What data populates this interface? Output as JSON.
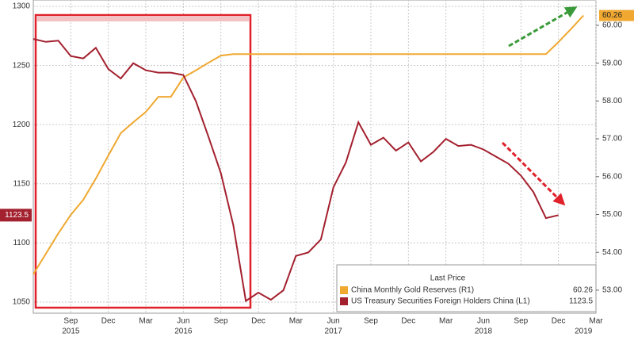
{
  "chart_data": {
    "type": "line",
    "x": [
      "2015-06",
      "2015-07",
      "2015-08",
      "2015-09",
      "2015-10",
      "2015-11",
      "2015-12",
      "2016-01",
      "2016-02",
      "2016-03",
      "2016-04",
      "2016-05",
      "2016-06",
      "2016-07",
      "2016-08",
      "2016-09",
      "2016-10",
      "2016-11",
      "2016-12",
      "2017-01",
      "2017-02",
      "2017-03",
      "2017-04",
      "2017-05",
      "2017-06",
      "2017-07",
      "2017-08",
      "2017-09",
      "2017-10",
      "2017-11",
      "2017-12",
      "2018-01",
      "2018-02",
      "2018-03",
      "2018-04",
      "2018-05",
      "2018-06",
      "2018-07",
      "2018-08",
      "2018-09",
      "2018-10",
      "2018-11",
      "2018-12",
      "2019-01",
      "2019-02"
    ],
    "xlim": [
      "2015-06",
      "2019-03"
    ],
    "xticks": [
      {
        "value": "2015-09",
        "label": "Sep"
      },
      {
        "value": "2015-12",
        "label": "Dec"
      },
      {
        "value": "2016-03",
        "label": "Mar"
      },
      {
        "value": "2016-06",
        "label": "Jun"
      },
      {
        "value": "2016-09",
        "label": "Sep"
      },
      {
        "value": "2016-12",
        "label": "Dec"
      },
      {
        "value": "2017-03",
        "label": "Mar"
      },
      {
        "value": "2017-06",
        "label": "Jun"
      },
      {
        "value": "2017-09",
        "label": "Sep"
      },
      {
        "value": "2017-12",
        "label": "Dec"
      },
      {
        "value": "2018-03",
        "label": "Mar"
      },
      {
        "value": "2018-06",
        "label": "Jun"
      },
      {
        "value": "2018-09",
        "label": "Sep"
      },
      {
        "value": "2018-12",
        "label": "Dec"
      },
      {
        "value": "2019-03",
        "label": "Mar"
      }
    ],
    "xtick_groups": [
      {
        "value": "2015-09",
        "label": "2015"
      },
      {
        "value": "2016-06",
        "label": "2016"
      },
      {
        "value": "2017-06",
        "label": "2017"
      },
      {
        "value": "2018-06",
        "label": "2018"
      },
      {
        "value": "2019-02",
        "label": "2019"
      }
    ],
    "ylim": [
      1040.6,
      1305.4
    ],
    "yticks": [
      1050,
      1100,
      1150,
      1200,
      1250,
      1300
    ],
    "y2lim": [
      52.39,
      60.67
    ],
    "y2ticks": [
      {
        "value": 53,
        "label": "53.00"
      },
      {
        "value": 54,
        "label": "54.00"
      },
      {
        "value": 55,
        "label": "55.00"
      },
      {
        "value": 56,
        "label": "56.00"
      },
      {
        "value": 57,
        "label": "57.00"
      },
      {
        "value": 58,
        "label": "58.00"
      },
      {
        "value": 59,
        "label": "59.00"
      },
      {
        "value": 60,
        "label": "60.00"
      }
    ],
    "grid": true,
    "legend_title": "Last Price",
    "series": [
      {
        "name": "China Monthly Gold Reserves  (R1)",
        "color": "#f0a830",
        "axis": "y2",
        "values": [
          53.42,
          53.96,
          54.5,
          54.99,
          55.39,
          55.95,
          56.56,
          57.15,
          57.44,
          57.71,
          58.11,
          58.11,
          58.62,
          58.81,
          59.01,
          59.2,
          59.24,
          59.24,
          59.24,
          59.24,
          59.24,
          59.24,
          59.24,
          59.24,
          59.24,
          59.24,
          59.24,
          59.24,
          59.24,
          59.24,
          59.24,
          59.24,
          59.24,
          59.24,
          59.24,
          59.24,
          59.24,
          59.24,
          59.24,
          59.24,
          59.24,
          59.24,
          59.56,
          59.9,
          60.26
        ]
      },
      {
        "name": "US Treasury Securities Foreign Holders China  (L1)",
        "color": "#a3202e",
        "axis": "y",
        "values": [
          1272.5,
          1270,
          1271,
          1258,
          1256,
          1265,
          1247,
          1239,
          1252,
          1246,
          1244,
          1244,
          1242,
          1220,
          1190,
          1159,
          1115,
          1051,
          1058,
          1052,
          1060,
          1089,
          1092,
          1103,
          1147,
          1168,
          1202,
          1183,
          1189,
          1178,
          1185,
          1169,
          1177,
          1188,
          1182,
          1183,
          1179,
          1173,
          1167,
          1157,
          1143,
          1121,
          1123.5,
          null,
          null
        ]
      }
    ]
  }
}
